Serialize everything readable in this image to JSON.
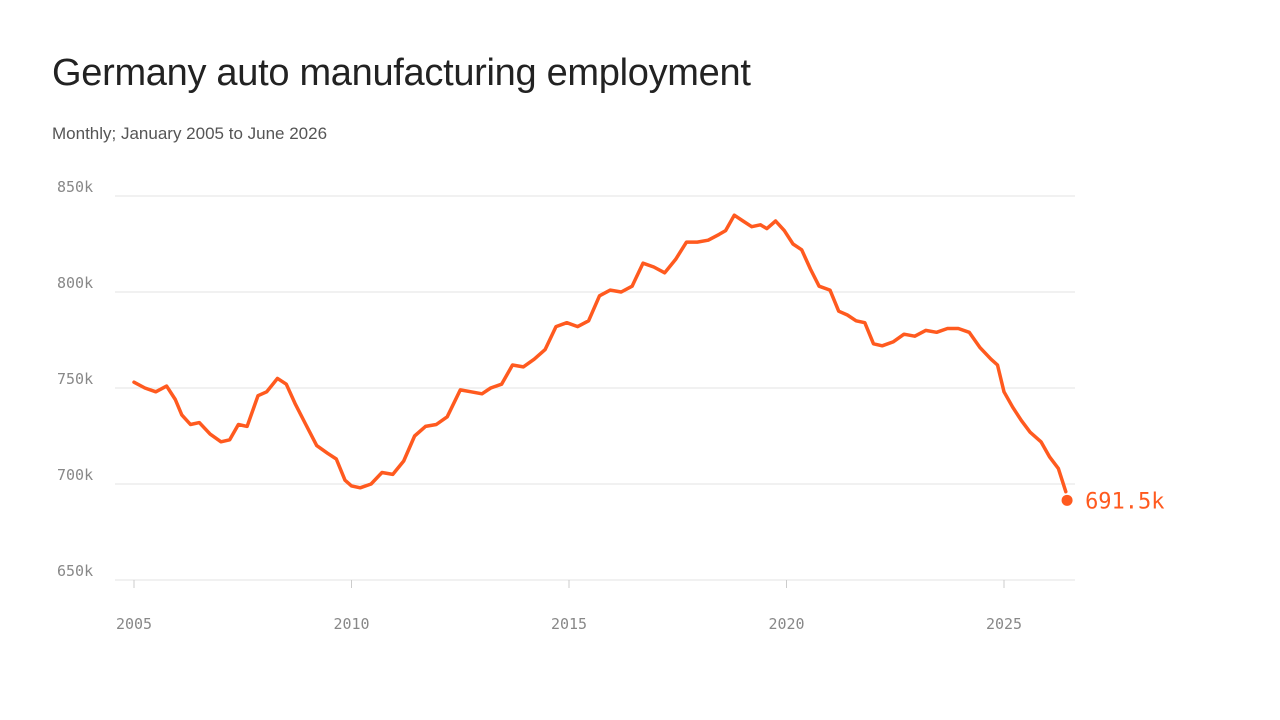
{
  "chart_data": {
    "type": "line",
    "title": "Germany auto manufacturing employment",
    "subtitle": "Monthly; January 2005 to June 2026",
    "xlabel": "",
    "ylabel": "",
    "xlim": [
      2005,
      2026.6
    ],
    "ylim": [
      650,
      850
    ],
    "x_ticks": [
      2005,
      2010,
      2015,
      2020,
      2025
    ],
    "x_tick_labels": [
      "2005",
      "2010",
      "2015",
      "2020",
      "2025"
    ],
    "y_ticks": [
      650,
      700,
      750,
      800,
      850
    ],
    "y_tick_labels": [
      "650k",
      "700k",
      "750k",
      "800k",
      "850k"
    ],
    "grid": "horizontal",
    "line_color": "#ff5a1f",
    "end_label": "691.5k",
    "series": [
      {
        "x": [
          2005.0,
          2005.25,
          2005.5,
          2005.75,
          2005.95,
          2006.1,
          2006.3,
          2006.5,
          2006.75,
          2007.0,
          2007.2,
          2007.4,
          2007.6,
          2007.85,
          2008.05,
          2008.3,
          2008.5,
          2008.7,
          2008.95,
          2009.2,
          2009.45,
          2009.65,
          2009.85,
          2010.0,
          2010.2,
          2010.45,
          2010.7,
          2010.95,
          2011.2,
          2011.45,
          2011.7,
          2011.95,
          2012.2,
          2012.5,
          2012.75,
          2013.0,
          2013.2,
          2013.45,
          2013.7,
          2013.95,
          2014.2,
          2014.45,
          2014.7,
          2014.95,
          2015.2,
          2015.45,
          2015.7,
          2015.95,
          2016.2,
          2016.45,
          2016.7,
          2016.95,
          2017.2,
          2017.45,
          2017.7,
          2017.95,
          2018.2,
          2018.45,
          2018.6,
          2018.8,
          2019.0,
          2019.2,
          2019.4,
          2019.55,
          2019.75,
          2019.95,
          2020.15,
          2020.35,
          2020.55,
          2020.75,
          2021.0,
          2021.2,
          2021.4,
          2021.6,
          2021.8,
          2022.0,
          2022.2,
          2022.45,
          2022.7,
          2022.95,
          2023.2,
          2023.45,
          2023.7,
          2023.95,
          2024.2,
          2024.45,
          2024.7,
          2024.85,
          2025.0,
          2025.2,
          2025.4,
          2025.6,
          2025.85,
          2026.05,
          2026.25,
          2026.42
        ],
        "y": [
          753,
          750,
          748,
          751,
          744,
          736,
          731,
          732,
          726,
          722,
          723,
          731,
          730,
          746,
          748,
          755,
          752,
          742,
          731,
          720,
          716,
          713,
          702,
          699,
          698,
          700,
          706,
          705,
          712,
          725,
          730,
          731,
          735,
          749,
          748,
          747,
          750,
          752,
          762,
          761,
          765,
          770,
          782,
          784,
          782,
          785,
          798,
          801,
          800,
          803,
          815,
          813,
          810,
          817,
          826,
          826,
          827,
          830,
          832,
          840,
          837,
          834,
          835,
          833,
          837,
          832,
          825,
          822,
          812,
          803,
          801,
          790,
          788,
          785,
          784,
          773,
          772,
          774,
          778,
          777,
          780,
          779,
          781,
          781,
          779,
          771,
          765,
          762,
          748,
          740,
          733,
          727,
          722,
          714,
          708,
          696
        ]
      }
    ],
    "end_point": {
      "x": 2026.45,
      "y": 691.5
    }
  }
}
